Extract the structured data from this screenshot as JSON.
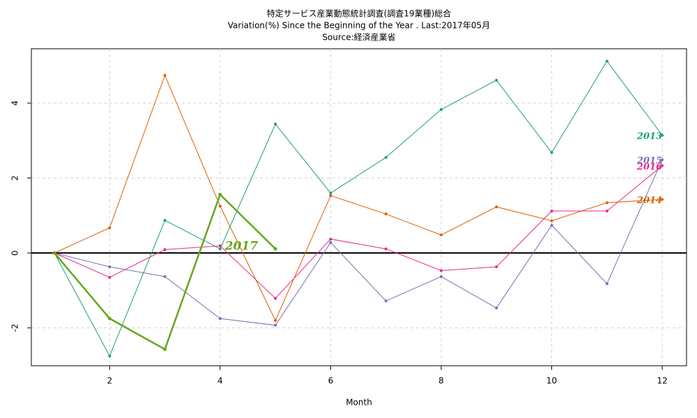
{
  "chart_data": {
    "type": "line",
    "title": "特定サービス産業動態統計調査(調査19業種)総合",
    "subtitle": "Variation(%) Since the Beginning of the Year . Last:2017年05月",
    "source": "Source:経済産業省",
    "x_label": "Month",
    "x": [
      1,
      2,
      3,
      4,
      5,
      6,
      7,
      8,
      9,
      10,
      11,
      12
    ],
    "series": [
      {
        "name": "2013",
        "color": "#1b9e77",
        "values": [
          0,
          -2.75,
          0.87,
          0.11,
          3.44,
          1.6,
          2.55,
          3.83,
          4.61,
          2.68,
          5.12,
          3.14
        ]
      },
      {
        "name": "2014",
        "color": "#d95f02",
        "values": [
          0,
          0.67,
          4.74,
          1.25,
          -1.8,
          1.53,
          1.04,
          0.48,
          1.23,
          0.86,
          1.34,
          1.43
        ]
      },
      {
        "name": "2015",
        "color": "#7570b3",
        "values": [
          0,
          -0.37,
          -0.63,
          -1.75,
          -1.93,
          0.28,
          -1.28,
          -0.63,
          -1.47,
          0.74,
          -0.82,
          2.49
        ]
      },
      {
        "name": "2016",
        "color": "#e7298a",
        "values": [
          0,
          -0.65,
          0.09,
          0.19,
          -1.21,
          0.37,
          0.11,
          -0.47,
          -0.37,
          1.12,
          1.12,
          2.33
        ]
      },
      {
        "name": "2017",
        "color": "#66a61e",
        "values": [
          0,
          -1.75,
          -2.57,
          1.56,
          0.11,
          null,
          null,
          null,
          null,
          null,
          null,
          null
        ]
      }
    ],
    "reference_line": 0,
    "xlim": [
      0.584,
      12.44
    ],
    "ylim": [
      -3.01,
      5.45
    ],
    "xticks": [
      2,
      4,
      6,
      8,
      10,
      12
    ],
    "yticks": [
      -2,
      0,
      2,
      4
    ],
    "grid": true
  }
}
